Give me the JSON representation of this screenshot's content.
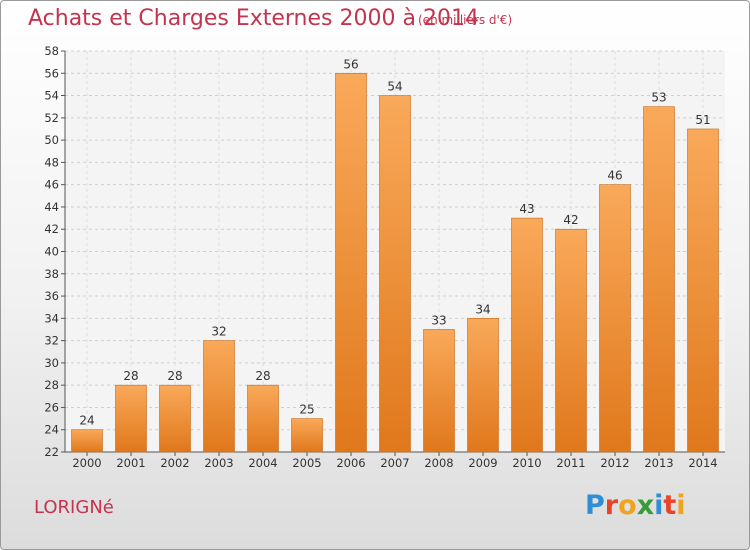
{
  "header": {
    "title": "Achats et Charges Externes 2000 à 2014",
    "unit": "(en milliers d'€)"
  },
  "footer": {
    "town": "LORIGNé",
    "logo_letters": [
      "P",
      "r",
      "o",
      "x",
      "i",
      "t",
      "i"
    ],
    "logo_colors": [
      "#2f8fd6",
      "#e8442a",
      "#f0a31c",
      "#3a9b3a",
      "#2f8fd6",
      "#e8442a",
      "#f0a31c"
    ]
  },
  "chart_data": {
    "type": "bar",
    "categories": [
      "2000",
      "2001",
      "2002",
      "2003",
      "2004",
      "2005",
      "2006",
      "2007",
      "2008",
      "2009",
      "2010",
      "2011",
      "2012",
      "2013",
      "2014"
    ],
    "values": [
      24,
      28,
      28,
      32,
      28,
      25,
      56,
      54,
      33,
      34,
      43,
      42,
      46,
      53,
      51
    ],
    "ylim": [
      22,
      58
    ],
    "yticks": [
      22,
      24,
      26,
      28,
      30,
      32,
      34,
      36,
      38,
      40,
      42,
      44,
      46,
      48,
      50,
      52,
      54,
      56,
      58
    ],
    "grid": true,
    "bar_color_light": "#f9a95a",
    "bar_color_dark": "#e0781c"
  }
}
